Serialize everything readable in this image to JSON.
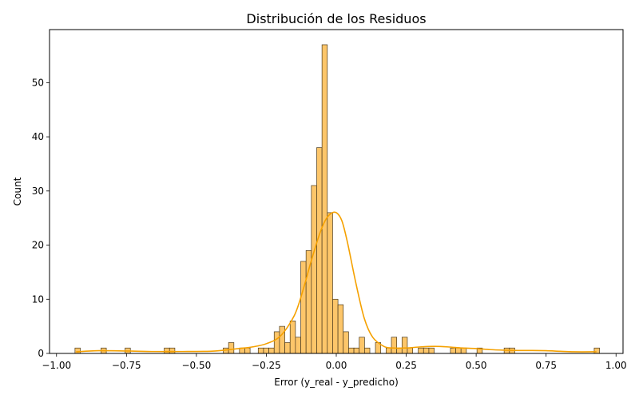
{
  "chart_data": {
    "type": "bar",
    "title": "Distribución de los Residuos",
    "xlabel": "Error (y_real - y_predicho)",
    "ylabel": "Count",
    "xlim": [
      -1.0,
      1.0
    ],
    "ylim": [
      0,
      60
    ],
    "xticks": [
      -1.0,
      -0.75,
      -0.5,
      -0.25,
      0.0,
      0.25,
      0.5,
      0.75,
      1.0
    ],
    "xtick_labels": [
      "−1.00",
      "−0.75",
      "−0.50",
      "−0.25",
      "0.00",
      "0.25",
      "0.50",
      "0.75",
      "1.00"
    ],
    "yticks": [
      0,
      10,
      20,
      30,
      40,
      50
    ],
    "ytick_labels": [
      "0",
      "10",
      "20",
      "30",
      "40",
      "50"
    ],
    "grid": false,
    "legend": "none",
    "colors": {
      "bar_fill": "#fdc66a",
      "bar_edge": "#4a3a1f",
      "kde_line": "#f5a100"
    },
    "bins": [
      {
        "x0": -0.934,
        "x1": -0.915,
        "count": 1
      },
      {
        "x0": -0.841,
        "x1": -0.822,
        "count": 1
      },
      {
        "x0": -0.755,
        "x1": -0.736,
        "count": 1
      },
      {
        "x0": -0.615,
        "x1": -0.596,
        "count": 1
      },
      {
        "x0": -0.596,
        "x1": -0.577,
        "count": 1
      },
      {
        "x0": -0.404,
        "x1": -0.385,
        "count": 1
      },
      {
        "x0": -0.385,
        "x1": -0.366,
        "count": 2
      },
      {
        "x0": -0.346,
        "x1": -0.327,
        "count": 1
      },
      {
        "x0": -0.327,
        "x1": -0.308,
        "count": 1
      },
      {
        "x0": -0.279,
        "x1": -0.26,
        "count": 1
      },
      {
        "x0": -0.26,
        "x1": -0.241,
        "count": 1
      },
      {
        "x0": -0.241,
        "x1": -0.222,
        "count": 1
      },
      {
        "x0": -0.222,
        "x1": -0.203,
        "count": 4
      },
      {
        "x0": -0.203,
        "x1": -0.184,
        "count": 5
      },
      {
        "x0": -0.184,
        "x1": -0.165,
        "count": 2
      },
      {
        "x0": -0.165,
        "x1": -0.146,
        "count": 6
      },
      {
        "x0": -0.146,
        "x1": -0.127,
        "count": 3
      },
      {
        "x0": -0.127,
        "x1": -0.108,
        "count": 17
      },
      {
        "x0": -0.108,
        "x1": -0.089,
        "count": 19
      },
      {
        "x0": -0.089,
        "x1": -0.07,
        "count": 31
      },
      {
        "x0": -0.07,
        "x1": -0.051,
        "count": 38
      },
      {
        "x0": -0.051,
        "x1": -0.032,
        "count": 57
      },
      {
        "x0": -0.032,
        "x1": -0.013,
        "count": 26
      },
      {
        "x0": -0.013,
        "x1": 0.006,
        "count": 10
      },
      {
        "x0": 0.006,
        "x1": 0.025,
        "count": 9
      },
      {
        "x0": 0.025,
        "x1": 0.044,
        "count": 4
      },
      {
        "x0": 0.044,
        "x1": 0.063,
        "count": 1
      },
      {
        "x0": 0.063,
        "x1": 0.082,
        "count": 1
      },
      {
        "x0": 0.082,
        "x1": 0.101,
        "count": 3
      },
      {
        "x0": 0.101,
        "x1": 0.12,
        "count": 1
      },
      {
        "x0": 0.14,
        "x1": 0.159,
        "count": 2
      },
      {
        "x0": 0.178,
        "x1": 0.197,
        "count": 1
      },
      {
        "x0": 0.197,
        "x1": 0.216,
        "count": 3
      },
      {
        "x0": 0.216,
        "x1": 0.235,
        "count": 1
      },
      {
        "x0": 0.235,
        "x1": 0.254,
        "count": 3
      },
      {
        "x0": 0.254,
        "x1": 0.273,
        "count": 1
      },
      {
        "x0": 0.293,
        "x1": 0.312,
        "count": 1
      },
      {
        "x0": 0.312,
        "x1": 0.331,
        "count": 1
      },
      {
        "x0": 0.331,
        "x1": 0.35,
        "count": 1
      },
      {
        "x0": 0.408,
        "x1": 0.427,
        "count": 1
      },
      {
        "x0": 0.427,
        "x1": 0.446,
        "count": 1
      },
      {
        "x0": 0.446,
        "x1": 0.465,
        "count": 1
      },
      {
        "x0": 0.503,
        "x1": 0.522,
        "count": 1
      },
      {
        "x0": 0.6,
        "x1": 0.619,
        "count": 1
      },
      {
        "x0": 0.619,
        "x1": 0.638,
        "count": 1
      },
      {
        "x0": 0.922,
        "x1": 0.941,
        "count": 1
      }
    ],
    "kde": {
      "x": [
        -0.93,
        -0.85,
        -0.75,
        -0.65,
        -0.55,
        -0.45,
        -0.4,
        -0.35,
        -0.3,
        -0.25,
        -0.2,
        -0.15,
        -0.12,
        -0.09,
        -0.06,
        -0.04,
        -0.02,
        0.0,
        0.02,
        0.04,
        0.07,
        0.1,
        0.13,
        0.17,
        0.2,
        0.25,
        0.3,
        0.35,
        0.4,
        0.45,
        0.5,
        0.55,
        0.6,
        0.65,
        0.7,
        0.75,
        0.8,
        0.85,
        0.93
      ],
      "y": [
        0.3,
        0.5,
        0.45,
        0.35,
        0.35,
        0.4,
        0.6,
        0.9,
        1.2,
        1.8,
        3.2,
        7.0,
        11.5,
        17.0,
        22.0,
        24.5,
        25.8,
        26.0,
        24.5,
        20.5,
        13.0,
        6.5,
        3.0,
        1.3,
        1.0,
        1.0,
        1.2,
        1.3,
        1.2,
        1.0,
        0.9,
        0.7,
        0.6,
        0.55,
        0.55,
        0.5,
        0.4,
        0.3,
        0.3
      ]
    }
  }
}
